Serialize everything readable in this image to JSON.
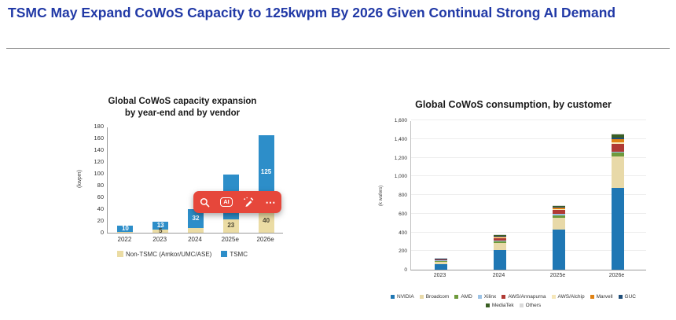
{
  "page": {
    "title": "TSMC May Expand CoWoS Capacity to 125kwpm By 2026 Given Continual Strong AI Demand"
  },
  "toolbar": {
    "background": "#E6473B",
    "ai_label": "AI",
    "more_label": "⋯"
  },
  "chart_data": [
    {
      "type": "bar",
      "stacked": true,
      "title": "Global CoWoS capacity expansion by year-end and by vendor",
      "title_lines": [
        "Global CoWoS capacity expansion",
        "by year-end and by vendor"
      ],
      "xlabel": "",
      "ylabel": "(kwpm)",
      "ylim": [
        0,
        180
      ],
      "ytick_step": 20,
      "grid": false,
      "legend_position": "bottom",
      "categories": [
        "2022",
        "2023",
        "2024",
        "2025e",
        "2026e"
      ],
      "series": [
        {
          "name": "Non-TSMC (Amkor/UMC/ASE)",
          "color": "#EBDCA4",
          "label_color": "#4a4533",
          "values": [
            1,
            5,
            8,
            23,
            40
          ],
          "labels": [
            "",
            "5",
            "",
            "23",
            "40"
          ]
        },
        {
          "name": "TSMC",
          "color": "#2D8EC9",
          "label_color": "#ffffff",
          "values": [
            10,
            13,
            32,
            75,
            125
          ],
          "labels": [
            "10",
            "13",
            "32",
            "75",
            "125"
          ]
        }
      ]
    },
    {
      "type": "bar",
      "stacked": true,
      "title": "Global CoWoS consumption, by customer",
      "xlabel": "",
      "ylabel": "(k wafers)",
      "ylim": [
        0,
        1600
      ],
      "ytick_step": 200,
      "grid": true,
      "legend_position": "bottom",
      "categories": [
        "2023",
        "2024",
        "2025e",
        "2026e"
      ],
      "series": [
        {
          "name": "NVIDIA",
          "color": "#1F77B4",
          "values": [
            60,
            210,
            430,
            880
          ]
        },
        {
          "name": "Broadcom",
          "color": "#E8D9A8",
          "values": [
            25,
            80,
            130,
            330
          ]
        },
        {
          "name": "AMD",
          "color": "#6E9A3C",
          "values": [
            5,
            15,
            25,
            45
          ]
        },
        {
          "name": "Xilinx",
          "color": "#9DC3E6",
          "values": [
            5,
            8,
            10,
            10
          ]
        },
        {
          "name": "AWS/Annapurna",
          "color": "#B03A34",
          "values": [
            10,
            25,
            45,
            80
          ]
        },
        {
          "name": "AWS/Alchip",
          "color": "#F5E6B8",
          "values": [
            0,
            5,
            10,
            20
          ]
        },
        {
          "name": "Marvell",
          "color": "#E08214",
          "values": [
            0,
            8,
            15,
            30
          ]
        },
        {
          "name": "GUC",
          "color": "#1F4E79",
          "values": [
            3,
            5,
            8,
            20
          ]
        },
        {
          "name": "MediaTek",
          "color": "#3A5F23",
          "values": [
            0,
            5,
            8,
            35
          ]
        },
        {
          "name": "Others",
          "color": "#D9D9D9",
          "values": [
            5,
            10,
            10,
            10
          ]
        }
      ]
    }
  ]
}
